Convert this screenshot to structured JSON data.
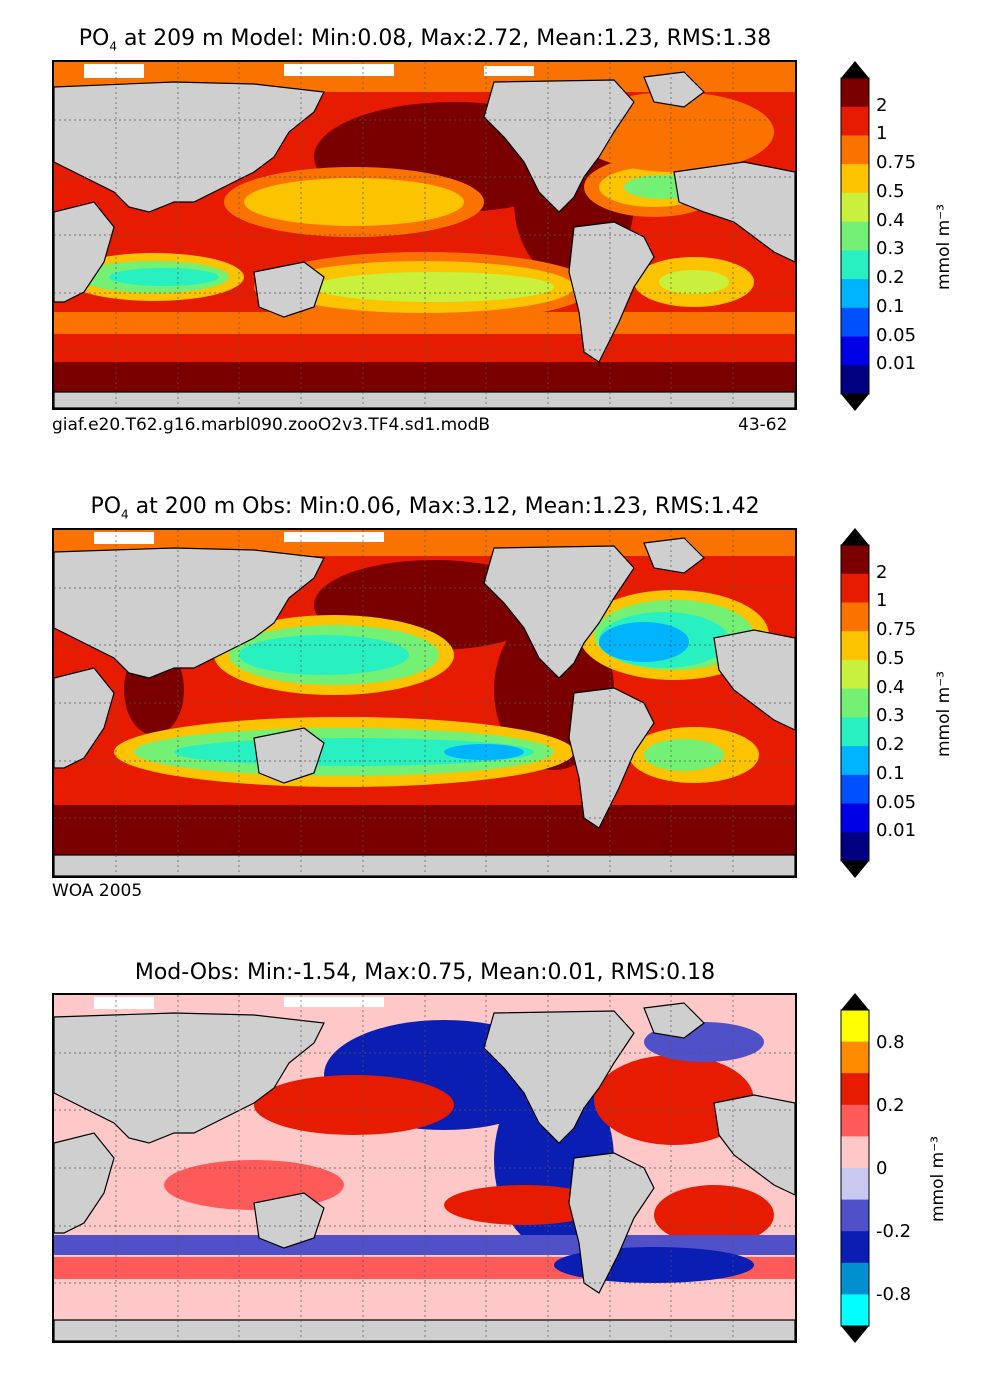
{
  "chart_data": [
    {
      "type": "heatmap",
      "title_prefix": "PO",
      "title_sub": "4",
      "title_rest": " at 209 m Model: Min:0.08, Max:2.72, Mean:1.23, RMS:1.38",
      "caption_left": "giaf.e20.T62.g16.marbl090.zooO2v3.TF4.sd1.modB",
      "caption_right": "43-62",
      "colorbar_label": "mmol m⁻³",
      "colorbar_levels": [
        "2",
        "1",
        "0.75",
        "0.5",
        "0.4",
        "0.3",
        "0.2",
        "0.1",
        "0.05",
        "0.01"
      ],
      "colorbar_colors": [
        "#7a0000",
        "#e61b00",
        "#fa7300",
        "#fcc400",
        "#c8f03c",
        "#74f074",
        "#28f0c0",
        "#00b4ff",
        "#0050ff",
        "#0000e6",
        "#000080"
      ]
    },
    {
      "type": "heatmap",
      "title_prefix": "PO",
      "title_sub": "4",
      "title_rest": " at 200 m Obs: Min:0.06, Max:3.12, Mean:1.23, RMS:1.42",
      "caption_left": "WOA 2005",
      "caption_right": "",
      "colorbar_label": "mmol m⁻³",
      "colorbar_levels": [
        "2",
        "1",
        "0.75",
        "0.5",
        "0.4",
        "0.3",
        "0.2",
        "0.1",
        "0.05",
        "0.01"
      ],
      "colorbar_colors": [
        "#7a0000",
        "#e61b00",
        "#fa7300",
        "#fcc400",
        "#c8f03c",
        "#74f074",
        "#28f0c0",
        "#00b4ff",
        "#0050ff",
        "#0000e6",
        "#000080"
      ]
    },
    {
      "type": "heatmap",
      "title_prefix": "",
      "title_sub": "",
      "title_rest": "Mod-Obs: Min:-1.54, Max:0.75, Mean:0.01, RMS:0.18",
      "caption_left": "",
      "caption_right": "",
      "colorbar_label": "mmol m⁻³",
      "colorbar_levels": [
        "0.8",
        "0.2",
        "0",
        "-0.2",
        "-0.8"
      ],
      "colorbar_colors": [
        "#ffff00",
        "#ff8c00",
        "#e61b00",
        "#ff5a5a",
        "#ffc8c8",
        "#c8c8f0",
        "#5050c8",
        "#0a1eb4",
        "#0090d0",
        "#00ffff"
      ]
    }
  ],
  "colors": {
    "land": "#cfcfcf",
    "ice": "#ffffff"
  }
}
